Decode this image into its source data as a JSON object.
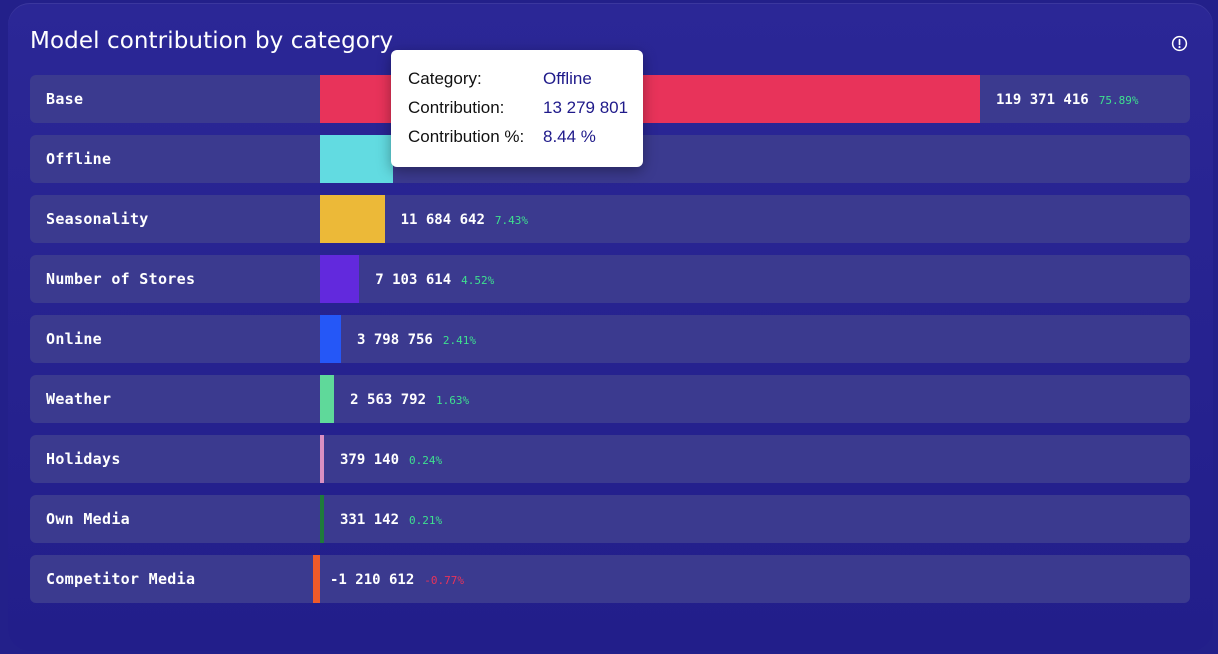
{
  "panel": {
    "title": "Model contribution by category",
    "info_icon": "info-circle-icon"
  },
  "tooltip": {
    "category_key": "Category:",
    "category_value": "Offline",
    "contribution_key": "Contribution:",
    "contribution_value": "13 279 801",
    "percent_key": "Contribution %:",
    "percent_value": "8.44 %"
  },
  "colors": {
    "positive_pct": "#3ee08f",
    "negative_pct": "#e8335a"
  },
  "chart_data": {
    "type": "bar",
    "orientation": "horizontal",
    "title": "Model contribution by category",
    "categories": [
      "Base",
      "Offline",
      "Seasonality",
      "Number of Stores",
      "Online",
      "Weather",
      "Holidays",
      "Own Media",
      "Competitor Media"
    ],
    "values": [
      119371416,
      13279801,
      11684642,
      7103614,
      3798756,
      2563792,
      379140,
      331142,
      -1210612
    ],
    "value_labels": [
      "119 371 416",
      "13 279 801",
      "11 684 642",
      "7 103 614",
      "3 798 756",
      "2 563 792",
      "379 140",
      "331 142",
      "-1 210 612"
    ],
    "percent_labels": [
      "75.89%",
      "8.44%",
      "7.43%",
      "4.52%",
      "2.41%",
      "1.63%",
      "0.24%",
      "0.21%",
      "-0.77%"
    ],
    "colors": [
      "#e8335a",
      "#62dbe1",
      "#ecb938",
      "#6229dd",
      "#2557f7",
      "#5fd99a",
      "#d98fc2",
      "#1f7a3c",
      "#ee5a2a"
    ],
    "grid": false,
    "legend": "none"
  }
}
